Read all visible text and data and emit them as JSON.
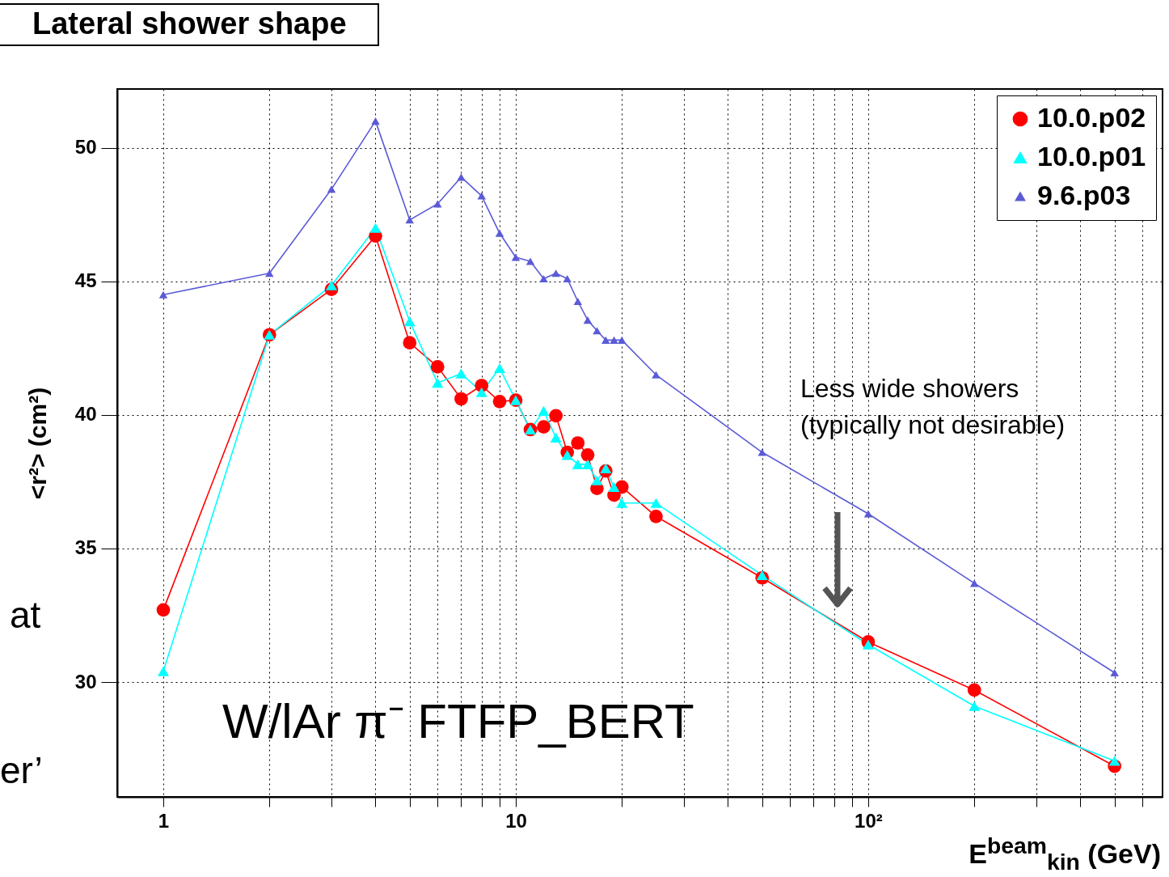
{
  "chart_data": {
    "type": "line",
    "title": "Lateral shower shape",
    "xlabel": "E$^{beam}$$_{kin}$ (GeV)",
    "ylabel": "<r²> (cm²)",
    "x": [
      1,
      2,
      3,
      4,
      5,
      6,
      7,
      8,
      9,
      10,
      11,
      12,
      13,
      14,
      15,
      16,
      17,
      18,
      19,
      20,
      25,
      50,
      100,
      200,
      500
    ],
    "series": [
      {
        "name": "10.0.p02",
        "color": "#ff0000",
        "marker": "circle",
        "values": [
          32.7,
          43.0,
          44.7,
          46.7,
          42.7,
          41.8,
          40.6,
          41.1,
          40.5,
          40.55,
          39.45,
          39.55,
          39.97,
          38.6,
          38.95,
          38.5,
          37.25,
          37.9,
          37.0,
          37.3,
          36.2,
          33.9,
          31.5,
          29.7,
          26.85
        ]
      },
      {
        "name": "10.0.p01",
        "color": "#00ffff",
        "marker": "triangle",
        "values": [
          30.4,
          43.0,
          44.85,
          47.0,
          43.5,
          41.2,
          41.55,
          40.85,
          41.75,
          40.55,
          39.45,
          40.15,
          39.15,
          38.5,
          38.15,
          38.15,
          37.55,
          38.0,
          37.3,
          36.7,
          36.7,
          34.0,
          31.4,
          29.1,
          27.05
        ]
      },
      {
        "name": "9.6.p03",
        "color": "#5b5bd6",
        "marker": "triangle",
        "values": [
          44.5,
          45.3,
          48.45,
          51.0,
          47.3,
          47.9,
          48.9,
          48.2,
          46.8,
          45.9,
          45.75,
          45.1,
          45.3,
          45.1,
          44.25,
          43.55,
          43.15,
          42.8,
          42.8,
          42.8,
          41.5,
          38.6,
          36.3,
          33.7,
          30.35
        ]
      }
    ],
    "log": "x",
    "xlim": [
      0.74,
      684
    ],
    "xticks": [
      1,
      {
        "value": 2,
        "label": null
      },
      {
        "value": 3,
        "label": null
      },
      {
        "value": 4,
        "label": null
      },
      {
        "value": 5,
        "label": null
      },
      {
        "value": 6,
        "label": null
      },
      {
        "value": 7,
        "label": null
      },
      {
        "value": 8,
        "label": null
      },
      {
        "value": 9,
        "label": null
      },
      10,
      {
        "value": 20,
        "label": null
      },
      {
        "value": 30,
        "label": null
      },
      {
        "value": 40,
        "label": null
      },
      {
        "value": 50,
        "label": null
      },
      {
        "value": 60,
        "label": null
      },
      {
        "value": 70,
        "label": null
      },
      {
        "value": 80,
        "label": null
      },
      {
        "value": 90,
        "label": null
      },
      {
        "value": 100,
        "label": "10²"
      },
      {
        "value": 200,
        "label": null
      },
      {
        "value": 300,
        "label": null
      },
      {
        "value": 400,
        "label": null
      },
      {
        "value": 500,
        "label": null
      },
      {
        "value": 600,
        "label": null
      }
    ],
    "ylim": [
      25.7,
      52.2
    ],
    "yticks": [
      30,
      35,
      40,
      45,
      50
    ],
    "grid": true,
    "legend": "top right",
    "line_style": "solid",
    "annotations": [
      "Less wide showers\n(typically not desirable)",
      "W/lAr π⁻ FTFP_BERT",
      "at",
      "er’"
    ]
  }
}
